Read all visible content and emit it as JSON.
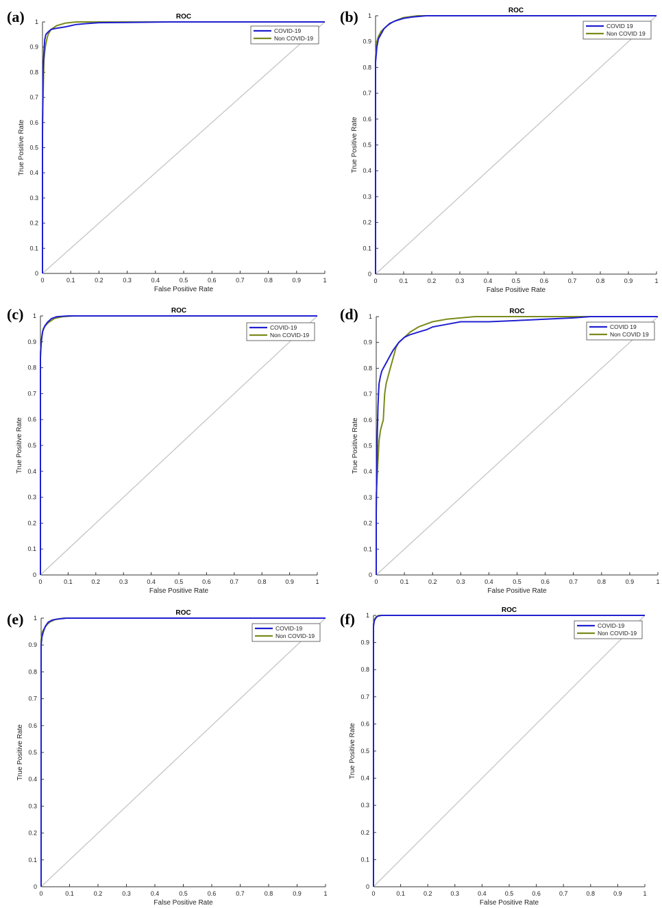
{
  "chart_data": [
    {
      "type": "line",
      "panel_label": "(a)",
      "title": "ROC",
      "xlabel": "False Positive Rate",
      "ylabel": "True Positive Rate",
      "xlim": [
        0,
        1
      ],
      "ylim": [
        0,
        1
      ],
      "xticks": [
        "0",
        "0.1",
        "0.2",
        "0.3",
        "0.4",
        "0.5",
        "0.6",
        "0.7",
        "0.8",
        "0.9",
        "1"
      ],
      "yticks": [
        "0",
        "0.1",
        "0.2",
        "0.3",
        "0.4",
        "0.5",
        "0.6",
        "0.7",
        "0.8",
        "0.9",
        "1"
      ],
      "grid": false,
      "legend_position": "top-right",
      "diagonal_reference": true,
      "series": [
        {
          "name": "COVID-19",
          "color": "#1f1fd0",
          "x": [
            0,
            0,
            0.002,
            0.005,
            0.008,
            0.012,
            0.02,
            0.03,
            0.05,
            0.08,
            0.1,
            0.12,
            0.15,
            0.2,
            0.3,
            0.45,
            1
          ],
          "y": [
            0,
            0.55,
            0.8,
            0.88,
            0.93,
            0.95,
            0.96,
            0.97,
            0.975,
            0.98,
            0.985,
            0.99,
            0.993,
            0.997,
            0.998,
            1,
            1
          ]
        },
        {
          "name": "Non COVID-19",
          "color": "#7a8a1a",
          "x": [
            0,
            0,
            0.005,
            0.01,
            0.015,
            0.02,
            0.03,
            0.05,
            0.08,
            0.12,
            1
          ],
          "y": [
            0,
            0.6,
            0.85,
            0.9,
            0.93,
            0.95,
            0.97,
            0.985,
            0.995,
            1,
            1
          ]
        }
      ]
    },
    {
      "type": "line",
      "panel_label": "(b)",
      "title": "ROC",
      "xlabel": "False Positive Rate",
      "ylabel": "True Positive Rate",
      "xlim": [
        0,
        1
      ],
      "ylim": [
        0,
        1
      ],
      "xticks": [
        "0",
        "0.1",
        "0.2",
        "0.3",
        "0.4",
        "0.5",
        "0.6",
        "0.7",
        "0.8",
        "0.9",
        "1"
      ],
      "yticks": [
        "0",
        "0.1",
        "0.2",
        "0.3",
        "0.4",
        "0.5",
        "0.6",
        "0.7",
        "0.8",
        "0.9",
        "1"
      ],
      "grid": false,
      "legend_position": "top-right",
      "diagonal_reference": true,
      "series": [
        {
          "name": "COVID 19",
          "color": "#1f1fd0",
          "x": [
            0,
            0,
            0.005,
            0.01,
            0.02,
            0.03,
            0.05,
            0.07,
            0.1,
            0.13,
            0.18,
            1
          ],
          "y": [
            0,
            0.82,
            0.88,
            0.91,
            0.93,
            0.95,
            0.97,
            0.98,
            0.99,
            0.995,
            1,
            1
          ]
        },
        {
          "name": "Non COVID 19",
          "color": "#7a8a1a",
          "x": [
            0,
            0,
            0.005,
            0.01,
            0.02,
            0.04,
            0.06,
            0.08,
            0.1,
            0.15,
            1
          ],
          "y": [
            0,
            0.84,
            0.9,
            0.92,
            0.94,
            0.96,
            0.975,
            0.985,
            0.993,
            1,
            1
          ]
        }
      ]
    },
    {
      "type": "line",
      "panel_label": "(c)",
      "title": "ROC",
      "xlabel": "False Positive Rate",
      "ylabel": "True Positive Rate",
      "xlim": [
        0,
        1
      ],
      "ylim": [
        0,
        1
      ],
      "xticks": [
        "0",
        "0.1",
        "0.2",
        "0.3",
        "0.4",
        "0.5",
        "0.6",
        "0.7",
        "0.8",
        "0.9",
        "1"
      ],
      "yticks": [
        "0",
        "0.1",
        "0.2",
        "0.3",
        "0.4",
        "0.5",
        "0.6",
        "0.7",
        "0.8",
        "0.9",
        "1"
      ],
      "grid": false,
      "legend_position": "top-right",
      "diagonal_reference": true,
      "series": [
        {
          "name": "COVID-19",
          "color": "#1f1fd0",
          "x": [
            0,
            0,
            0.003,
            0.008,
            0.015,
            0.025,
            0.04,
            0.06,
            0.1,
            0.17,
            1
          ],
          "y": [
            0,
            0.84,
            0.9,
            0.94,
            0.96,
            0.975,
            0.99,
            0.997,
            1,
            1,
            1
          ]
        },
        {
          "name": "Non COVID-19",
          "color": "#7a8a1a",
          "x": [
            0,
            0,
            0.005,
            0.01,
            0.02,
            0.03,
            0.05,
            0.08,
            0.12,
            1
          ],
          "y": [
            0,
            0.86,
            0.92,
            0.95,
            0.965,
            0.975,
            0.99,
            0.997,
            1,
            1
          ]
        }
      ]
    },
    {
      "type": "line",
      "panel_label": "(d)",
      "title": "ROC",
      "xlabel": "False Positive Rate",
      "ylabel": "True Positive Rate",
      "xlim": [
        0,
        1
      ],
      "ylim": [
        0,
        1
      ],
      "xticks": [
        "0",
        "0.1",
        "0.2",
        "0.3",
        "0.4",
        "0.5",
        "0.6",
        "0.7",
        "0.8",
        "0.9",
        "1"
      ],
      "yticks": [
        "0",
        "0.1",
        "0.2",
        "0.3",
        "0.4",
        "0.5",
        "0.6",
        "0.7",
        "0.8",
        "0.9",
        "1"
      ],
      "grid": false,
      "legend_position": "top-right",
      "diagonal_reference": true,
      "series": [
        {
          "name": "COVID 19",
          "color": "#1f1fd0",
          "x": [
            0,
            0,
            0.002,
            0.004,
            0.006,
            0.008,
            0.01,
            0.015,
            0.02,
            0.03,
            0.04,
            0.05,
            0.06,
            0.08,
            0.1,
            0.12,
            0.15,
            0.18,
            0.2,
            0.25,
            0.3,
            0.4,
            0.5,
            0.6,
            0.7,
            0.76,
            1
          ],
          "y": [
            0,
            0.24,
            0.4,
            0.55,
            0.65,
            0.7,
            0.74,
            0.77,
            0.79,
            0.81,
            0.83,
            0.85,
            0.87,
            0.9,
            0.92,
            0.93,
            0.94,
            0.95,
            0.96,
            0.97,
            0.98,
            0.98,
            0.985,
            0.99,
            0.995,
            1,
            1
          ]
        },
        {
          "name": "Non COVID 19",
          "color": "#7a8a1a",
          "x": [
            0,
            0,
            0.005,
            0.01,
            0.015,
            0.02,
            0.025,
            0.03,
            0.035,
            0.04,
            0.05,
            0.06,
            0.07,
            0.08,
            0.1,
            0.12,
            0.15,
            0.2,
            0.25,
            0.3,
            0.35,
            1
          ],
          "y": [
            0,
            0.3,
            0.42,
            0.52,
            0.56,
            0.58,
            0.6,
            0.7,
            0.74,
            0.76,
            0.8,
            0.84,
            0.88,
            0.9,
            0.92,
            0.94,
            0.96,
            0.98,
            0.99,
            0.995,
            1,
            1
          ]
        }
      ]
    },
    {
      "type": "line",
      "panel_label": "(e)",
      "title": "ROC",
      "xlabel": "False Positive Rate",
      "ylabel": "True Positive Rate",
      "xlim": [
        0,
        1
      ],
      "ylim": [
        0,
        1
      ],
      "xticks": [
        "0",
        "0.1",
        "0.2",
        "0.3",
        "0.4",
        "0.5",
        "0.6",
        "0.7",
        "0.8",
        "0.9",
        "1"
      ],
      "yticks": [
        "0",
        "0.1",
        "0.2",
        "0.3",
        "0.4",
        "0.5",
        "0.6",
        "0.7",
        "0.8",
        "0.9",
        "1"
      ],
      "grid": false,
      "legend_position": "top-right",
      "diagonal_reference": true,
      "series": [
        {
          "name": "COVID-19",
          "color": "#1f1fd0",
          "x": [
            0,
            0,
            0.003,
            0.008,
            0.015,
            0.025,
            0.04,
            0.06,
            0.09,
            1
          ],
          "y": [
            0,
            0.9,
            0.93,
            0.95,
            0.97,
            0.985,
            0.993,
            0.997,
            1,
            1
          ]
        },
        {
          "name": "Non COVID-19",
          "color": "#7a8a1a",
          "x": [
            0,
            0,
            0.005,
            0.01,
            0.02,
            0.03,
            0.05,
            0.08,
            1
          ],
          "y": [
            0,
            0.92,
            0.95,
            0.96,
            0.975,
            0.985,
            0.995,
            1,
            1
          ]
        }
      ]
    },
    {
      "type": "line",
      "panel_label": "(f)",
      "title": "ROC",
      "xlabel": "False Positive Rate",
      "ylabel": "True Positive Rate",
      "xlim": [
        0,
        1
      ],
      "ylim": [
        0,
        1
      ],
      "xticks": [
        "0",
        "0.1",
        "0.2",
        "0.3",
        "0.4",
        "0.5",
        "0.6",
        "0.7",
        "0.8",
        "0.9",
        "1"
      ],
      "yticks": [
        "0",
        "0.1",
        "0.2",
        "0.3",
        "0.4",
        "0.5",
        "0.6",
        "0.7",
        "0.8",
        "0.9",
        "1"
      ],
      "grid": false,
      "legend_position": "top-right",
      "diagonal_reference": true,
      "series": [
        {
          "name": "COVID-19",
          "color": "#1f1fd0",
          "x": [
            0,
            0,
            0.003,
            0.008,
            0.015,
            0.03,
            1
          ],
          "y": [
            0,
            0.96,
            0.98,
            0.99,
            0.997,
            1,
            1
          ]
        },
        {
          "name": "Non COVID-19",
          "color": "#7a8a1a",
          "x": [
            0,
            0,
            0.004,
            0.01,
            0.02,
            1
          ],
          "y": [
            0,
            0.97,
            0.985,
            0.995,
            1,
            1
          ]
        }
      ]
    }
  ]
}
